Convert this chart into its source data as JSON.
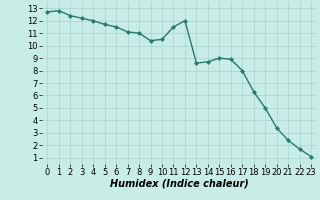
{
  "x": [
    0,
    1,
    2,
    3,
    4,
    5,
    6,
    7,
    8,
    9,
    10,
    11,
    12,
    13,
    14,
    15,
    16,
    17,
    18,
    19,
    20,
    21,
    22,
    23
  ],
  "y": [
    12.7,
    12.8,
    12.4,
    12.2,
    12.0,
    11.7,
    11.5,
    11.1,
    11.0,
    10.4,
    10.5,
    11.5,
    12.0,
    8.6,
    8.7,
    9.0,
    8.9,
    8.0,
    6.3,
    5.0,
    3.4,
    2.4,
    1.7,
    1.1
  ],
  "line_color": "#2a7a6a",
  "marker": "D",
  "marker_size": 2.0,
  "line_width": 1.0,
  "bg_color": "#c8ece6",
  "grid_color": "#a8d4cc",
  "xlabel": "Humidex (Indice chaleur)",
  "xlabel_fontsize": 7,
  "tick_fontsize": 6,
  "xlim": [
    -0.5,
    23.5
  ],
  "ylim": [
    0.5,
    13.5
  ],
  "yticks": [
    1,
    2,
    3,
    4,
    5,
    6,
    7,
    8,
    9,
    10,
    11,
    12,
    13
  ],
  "xticks": [
    0,
    1,
    2,
    3,
    4,
    5,
    6,
    7,
    8,
    9,
    10,
    11,
    12,
    13,
    14,
    15,
    16,
    17,
    18,
    19,
    20,
    21,
    22,
    23
  ]
}
